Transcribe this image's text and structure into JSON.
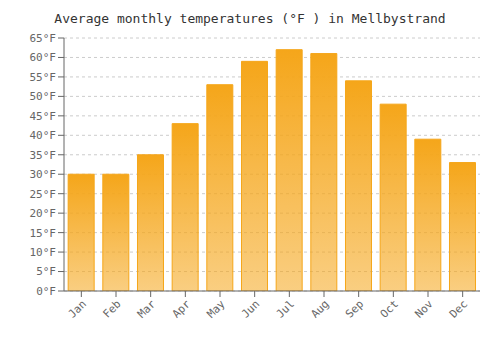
{
  "chart_data": {
    "type": "bar",
    "title": "Average monthly temperatures (°F ) in Mellbystrand",
    "categories": [
      "Jan",
      "Feb",
      "Mar",
      "Apr",
      "May",
      "Jun",
      "Jul",
      "Aug",
      "Sep",
      "Oct",
      "Nov",
      "Dec"
    ],
    "values": [
      30,
      30,
      35,
      43,
      53,
      59,
      62,
      61,
      54,
      48,
      39,
      33
    ],
    "color": "#F5A61A",
    "ylim": [
      0,
      65
    ],
    "yticks": [
      {
        "value": 0,
        "label": "0°F"
      },
      {
        "value": 5,
        "label": "5°F"
      },
      {
        "value": 10,
        "label": "10°F"
      },
      {
        "value": 15,
        "label": "15°F"
      },
      {
        "value": 20,
        "label": "20°F"
      },
      {
        "value": 25,
        "label": "25°F"
      },
      {
        "value": 30,
        "label": "30°F"
      },
      {
        "value": 35,
        "label": "35°F"
      },
      {
        "value": 40,
        "label": "40°F"
      },
      {
        "value": 45,
        "label": "45°F"
      },
      {
        "value": 50,
        "label": "50°F"
      },
      {
        "value": 55,
        "label": "55°F"
      },
      {
        "value": 60,
        "label": "60°F"
      },
      {
        "value": 65,
        "label": "65°F"
      }
    ],
    "grid": true
  }
}
